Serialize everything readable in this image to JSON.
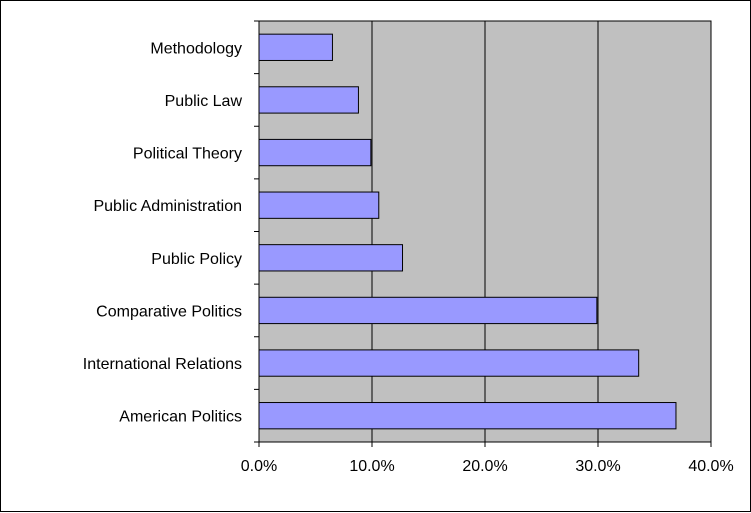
{
  "chart_data": {
    "type": "bar",
    "orientation": "horizontal",
    "title": "",
    "xlabel": "",
    "ylabel": "",
    "categories": [
      "American Politics",
      "International Relations",
      "Comparative Politics",
      "Public Policy",
      "Public Administration",
      "Political Theory",
      "Public Law",
      "Methodology"
    ],
    "values": [
      0.369,
      0.336,
      0.299,
      0.127,
      0.106,
      0.099,
      0.088,
      0.065
    ],
    "xlim": [
      0,
      0.4
    ],
    "x_ticks": [
      0,
      0.1,
      0.2,
      0.3,
      0.4
    ],
    "x_tick_labels": [
      "0.0%",
      "10.0%",
      "20.0%",
      "30.0%",
      "40.0%"
    ],
    "grid": "vertical",
    "legend": "none",
    "colors": {
      "plot_background": "#c0c0c0",
      "bar_fill": "#9999ff",
      "bar_stroke": "#000000",
      "gridline": "#000000"
    }
  }
}
